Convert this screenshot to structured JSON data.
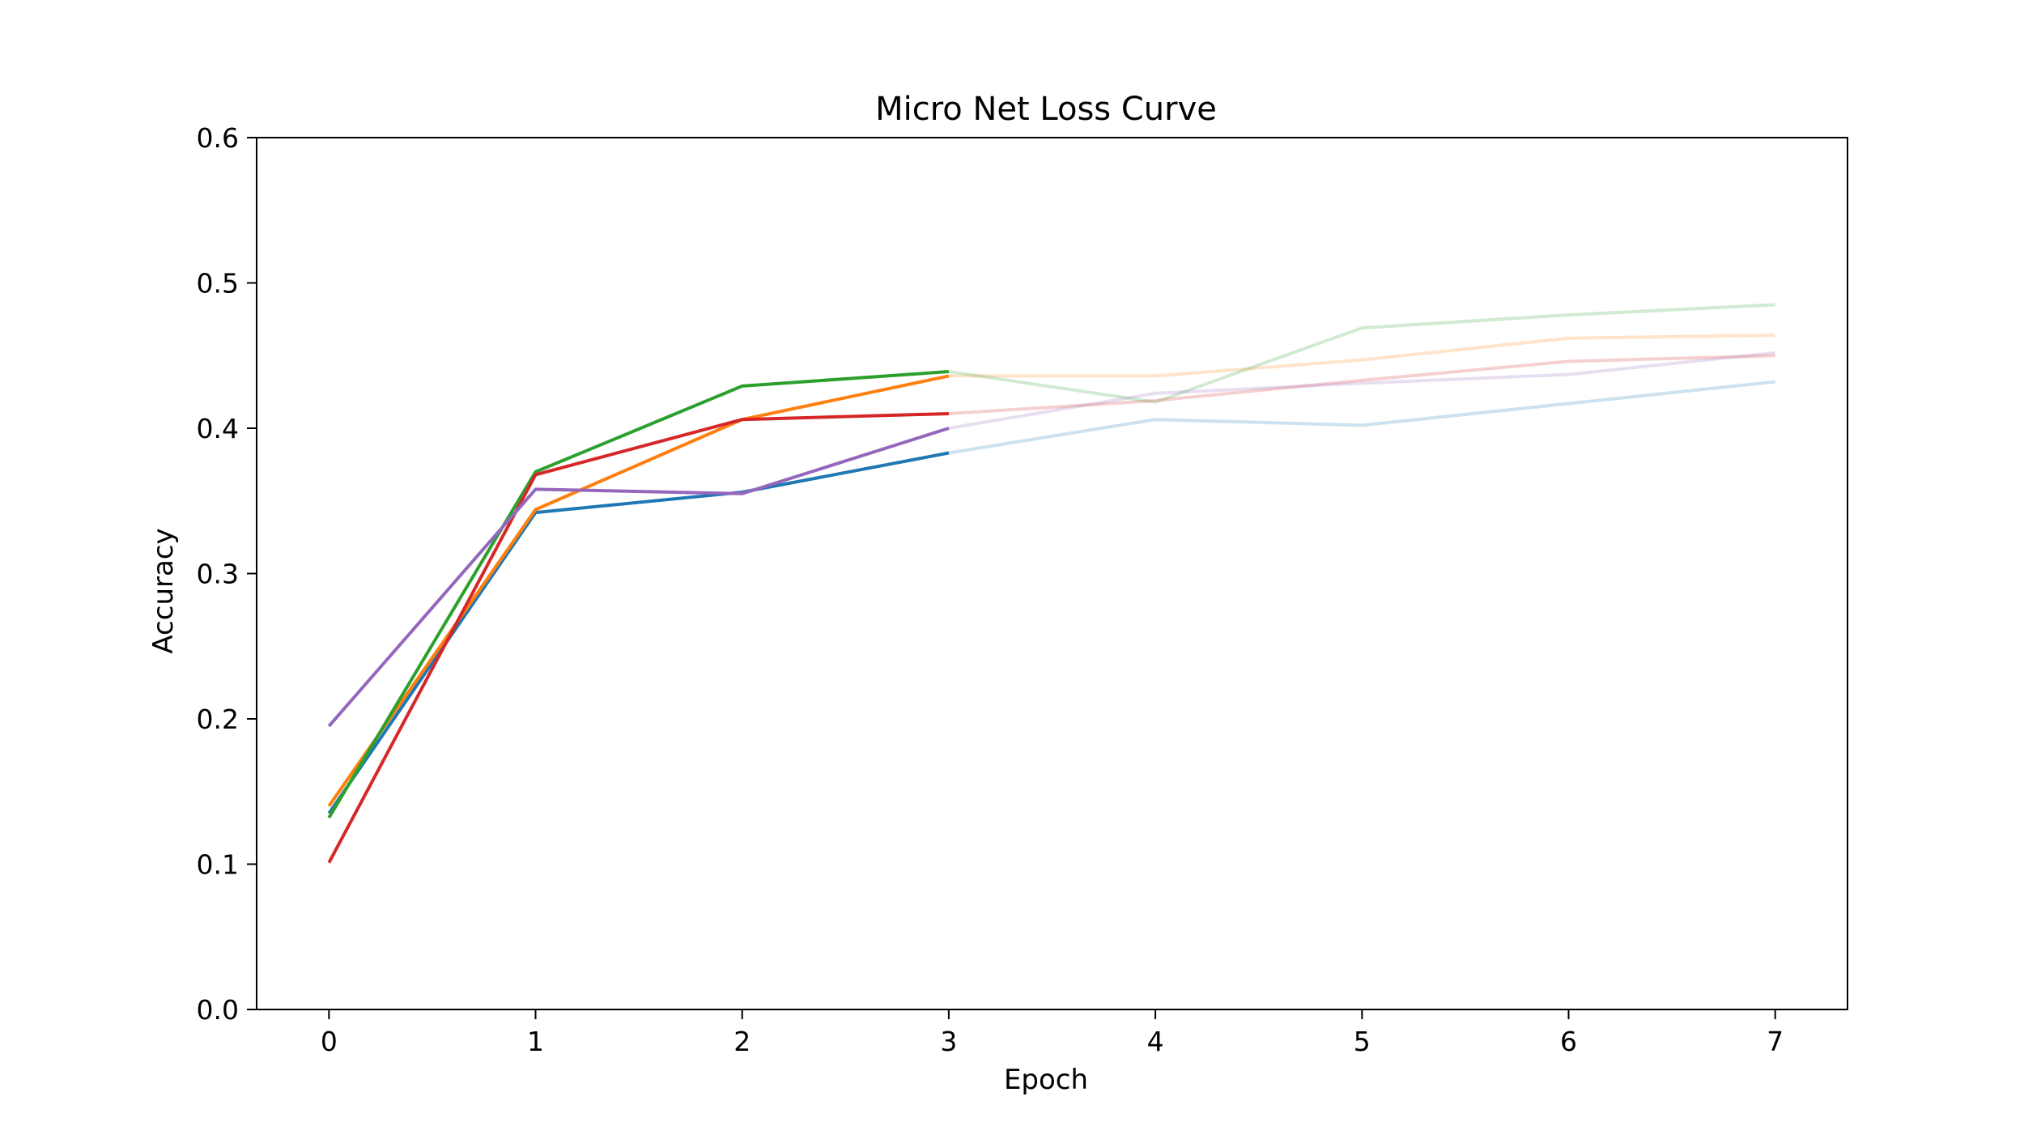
{
  "chart_data": {
    "type": "line",
    "title": "Micro Net Loss Curve",
    "xlabel": "Epoch",
    "ylabel": "Accuracy",
    "xlim": [
      -0.35,
      7.35
    ],
    "ylim": [
      0.0,
      0.6
    ],
    "x_ticks": [
      0,
      1,
      2,
      3,
      4,
      5,
      6,
      7
    ],
    "y_ticks": [
      0.0,
      0.1,
      0.2,
      0.3,
      0.4,
      0.5,
      0.6
    ],
    "y_tick_labels": [
      "0.0",
      "0.1",
      "0.2",
      "0.3",
      "0.4",
      "0.5",
      "0.6"
    ],
    "x_tick_labels": [
      "0",
      "1",
      "2",
      "3",
      "4",
      "5",
      "6",
      "7"
    ],
    "grid": false,
    "solid_until_x": 3,
    "faded_opacity": 0.22,
    "series": [
      {
        "color": "#1f77b4",
        "x": [
          0,
          1,
          2,
          3,
          4,
          5,
          6,
          7
        ],
        "values": [
          0.135,
          0.342,
          0.356,
          0.383,
          0.406,
          0.402,
          0.417,
          0.432
        ]
      },
      {
        "color": "#ff7f0e",
        "x": [
          0,
          1,
          2,
          3,
          4,
          5,
          6,
          7
        ],
        "values": [
          0.14,
          0.344,
          0.406,
          0.436,
          0.436,
          0.447,
          0.462,
          0.464
        ]
      },
      {
        "color": "#2ca02c",
        "x": [
          0,
          1,
          2,
          3,
          4,
          5,
          6,
          7
        ],
        "values": [
          0.132,
          0.37,
          0.429,
          0.439,
          0.418,
          0.469,
          0.478,
          0.485
        ]
      },
      {
        "color": "#d62728",
        "x": [
          0,
          1,
          2,
          3,
          4,
          5,
          6,
          7
        ],
        "values": [
          0.101,
          0.368,
          0.406,
          0.41,
          0.419,
          0.433,
          0.446,
          0.45
        ]
      },
      {
        "color": "#9467bd",
        "x": [
          0,
          1,
          2,
          3,
          4,
          5,
          6,
          7
        ],
        "values": [
          0.195,
          0.358,
          0.355,
          0.4,
          0.424,
          0.431,
          0.437,
          0.452
        ]
      }
    ]
  }
}
